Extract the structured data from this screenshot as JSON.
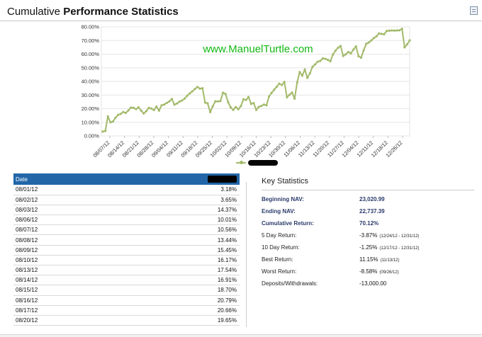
{
  "header": {
    "title_prefix": "Cumulative ",
    "title_bold": "Performance Statistics",
    "export_icon": "spreadsheet-icon"
  },
  "chart_data": {
    "type": "line",
    "watermark": "www.ManuelTurtle.com",
    "color": "#a3ba6b",
    "ylim": [
      0,
      80
    ],
    "y_ticks": [
      "0.00%",
      "10.00%",
      "20.00%",
      "30.00%",
      "40.00%",
      "50.00%",
      "60.00%",
      "70.00%",
      "80.00%"
    ],
    "x_ticks": [
      "08/07/12",
      "08/14/12",
      "08/21/12",
      "08/28/12",
      "09/04/12",
      "09/11/12",
      "09/18/12",
      "09/25/12",
      "10/02/12",
      "10/09/12",
      "10/16/12",
      "10/23/12",
      "10/30/12",
      "11/06/12",
      "11/13/12",
      "11/20/12",
      "11/27/12",
      "12/04/12",
      "12/11/12",
      "12/18/12",
      "12/26/12"
    ],
    "grid": true,
    "legend_position": "bottom-center",
    "series": [
      {
        "name": "",
        "values": [
          3.18,
          3.65,
          14.37,
          10.01,
          10.56,
          13.44,
          15.45,
          16.17,
          17.54,
          16.91,
          18.7,
          20.79,
          20.66,
          19.65,
          21.0,
          18.6,
          16.5,
          18.2,
          20.6,
          20.1,
          19.0,
          21.6,
          18.6,
          22.5,
          23.0,
          24.2,
          25.3,
          27.1,
          23.0,
          23.8,
          25.2,
          26.0,
          27.4,
          29.5,
          31.2,
          32.7,
          34.4,
          35.9,
          34.7,
          35.0,
          24.5,
          23.9,
          17.5,
          21.7,
          25.4,
          25.3,
          25.6,
          31.7,
          30.8,
          24.8,
          21.0,
          19.1,
          21.2,
          19.6,
          21.9,
          26.9,
          26.4,
          28.6,
          23.5,
          24.1,
          19.1,
          21.3,
          22.0,
          23.0,
          22.5,
          29.0,
          31.6,
          33.9,
          36.1,
          38.3,
          37.4,
          39.6,
          28.4,
          30.2,
          31.8,
          27.4,
          39.3,
          46.9,
          44.2,
          48.8,
          42.6,
          46.0,
          50.7,
          52.5,
          54.4,
          55.0,
          56.9,
          56.6,
          55.8,
          54.8,
          59.8,
          62.6,
          64.7,
          66.0,
          58.7,
          59.9,
          61.6,
          60.6,
          63.3,
          65.7,
          58.5,
          57.4,
          62.8,
          67.6,
          68.6,
          70.1,
          71.8,
          73.1,
          75.2,
          74.9,
          74.6,
          77.0,
          77.2,
          77.4,
          77.3,
          77.4,
          77.5,
          78.6,
          65.0,
          67.2,
          70.12
        ]
      }
    ]
  },
  "table": {
    "header_date": "Date",
    "header_value": "",
    "rows": [
      {
        "date": "08/01/12",
        "value": "3.18%"
      },
      {
        "date": "08/02/12",
        "value": "3.65%"
      },
      {
        "date": "08/03/12",
        "value": "14.37%"
      },
      {
        "date": "08/06/12",
        "value": "10.01%"
      },
      {
        "date": "08/07/12",
        "value": "10.56%"
      },
      {
        "date": "08/08/12",
        "value": "13.44%"
      },
      {
        "date": "08/09/12",
        "value": "15.45%"
      },
      {
        "date": "08/10/12",
        "value": "16.17%"
      },
      {
        "date": "08/13/12",
        "value": "17.54%"
      },
      {
        "date": "08/14/12",
        "value": "16.91%"
      },
      {
        "date": "08/15/12",
        "value": "18.70%"
      },
      {
        "date": "08/16/12",
        "value": "20.79%"
      },
      {
        "date": "08/17/12",
        "value": "20.66%"
      },
      {
        "date": "08/20/12",
        "value": "19.65%"
      }
    ]
  },
  "stats": {
    "title": "Key Statistics",
    "rows": [
      {
        "label": "Beginning NAV:",
        "value": "23,020.99",
        "range": "",
        "bold": true
      },
      {
        "label": "Ending NAV:",
        "value": "22,737.39",
        "range": "",
        "bold": true
      },
      {
        "label": "Cumulative Return:",
        "value": "70.12%",
        "range": "",
        "bold": true
      },
      {
        "label": "5 Day Return:",
        "value": "-3.87%",
        "range": "(12/24/12 - 12/31/12)",
        "bold": false
      },
      {
        "label": "10 Day Return:",
        "value": "-1.25%",
        "range": "(12/17/12 - 12/31/12)",
        "bold": false
      },
      {
        "label": "Best Return:",
        "value": "11.15%",
        "range": "(11/13/12)",
        "bold": false
      },
      {
        "label": "Worst Return:",
        "value": "-8.58%",
        "range": "(09/26/12)",
        "bold": false
      },
      {
        "label": "Deposits/Withdrawals:",
        "value": "-13,000.00",
        "range": "",
        "bold": false
      }
    ]
  }
}
